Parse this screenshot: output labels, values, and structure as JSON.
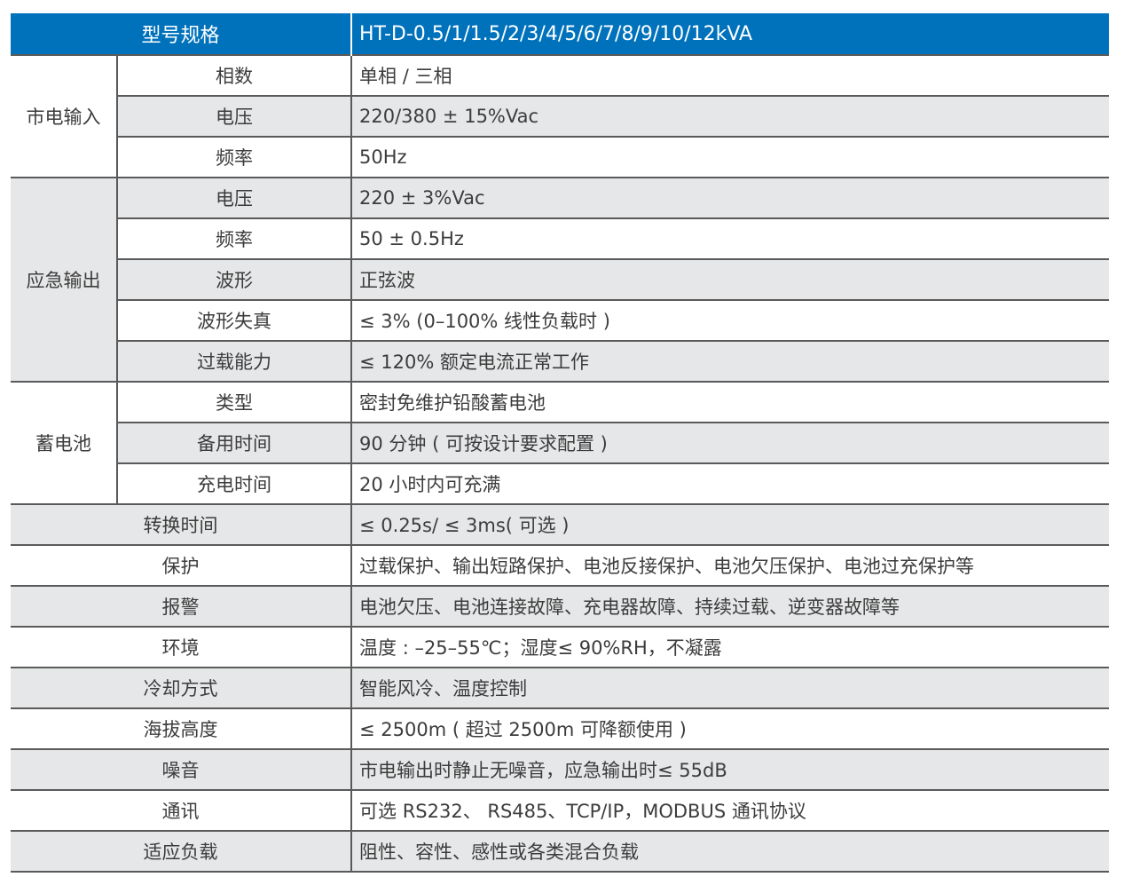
{
  "header": {
    "label": "型号规格",
    "value": "HT-D-0.5/1/1.5/2/3/4/5/6/7/8/9/10/12kVA"
  },
  "groups": [
    {
      "label": "市电输入",
      "rows": [
        {
          "label": "相数",
          "value": "单相 / 三相"
        },
        {
          "label": "电压",
          "value": "220/380 ± 15%Vac"
        },
        {
          "label": "频率",
          "value": "50Hz"
        }
      ]
    },
    {
      "label": "应急输出",
      "rows": [
        {
          "label": "电压",
          "value": "220 ± 3%Vac"
        },
        {
          "label": "频率",
          "value": "50 ± 0.5Hz"
        },
        {
          "label": "波形",
          "value": "正弦波"
        },
        {
          "label": "波形失真",
          "value": "≤ 3% (0–100% 线性负载时 )"
        },
        {
          "label": "过载能力",
          "value": "≤ 120% 额定电流正常工作"
        }
      ]
    },
    {
      "label": "蓄电池",
      "rows": [
        {
          "label": "类型",
          "value": "密封免维护铅酸蓄电池"
        },
        {
          "label": "备用时间",
          "value": "90 分钟 ( 可按设计要求配置 )"
        },
        {
          "label": "充电时间",
          "value": "20 小时内可充满"
        }
      ]
    }
  ],
  "rows": [
    {
      "label": "转换时间",
      "value": "≤ 0.25s/ ≤ 3ms( 可选 )"
    },
    {
      "label": "保护",
      "value": "过载保护、输出短路保护、电池反接保护、电池欠压保护、电池过充保护等"
    },
    {
      "label": "报警",
      "value": "电池欠压、电池连接故障、充电器故障、持续过载、逆变器故障等"
    },
    {
      "label": "环境",
      "value": "温度 : –25–55℃；湿度≤ 90%RH，不凝露"
    },
    {
      "label": "冷却方式",
      "value": "智能风冷、温度控制"
    },
    {
      "label": "海拔高度",
      "value": "≤ 2500m ( 超过 2500m 可降额使用 )"
    },
    {
      "label": "噪音",
      "value": "市电输出时静止无噪音，应急输出时≤ 55dB"
    },
    {
      "label": "通讯",
      "value": "可选 RS232、 RS485、TCP/IP，MODBUS 通讯协议"
    },
    {
      "label": "适应负载",
      "value": "阻性、容性、感性或各类混合负载"
    }
  ],
  "colors": {
    "header_bg": "#0072bc",
    "stripe": "#e6e7e8"
  }
}
